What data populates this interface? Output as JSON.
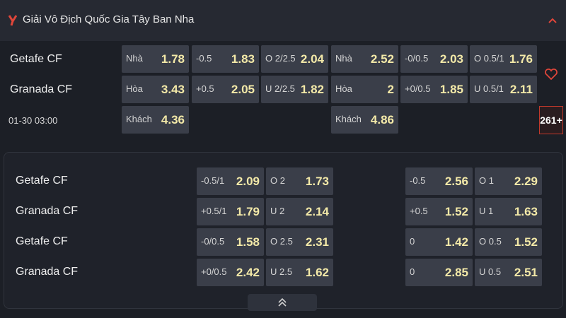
{
  "header": {
    "title": "Giải Vô Địch Quốc Gia Tây Ban Nha"
  },
  "match": {
    "home": "Getafe CF",
    "away": "Granada CF",
    "time": "01-30 03:00",
    "more": "261+"
  },
  "main": {
    "ft_1x2": [
      {
        "label": "Nhà",
        "odd": "1.78"
      },
      {
        "label": "Hòa",
        "odd": "3.43"
      },
      {
        "label": "Khách",
        "odd": "4.36"
      }
    ],
    "ft_handicap": [
      {
        "label": "-0.5",
        "odd": "1.83"
      },
      {
        "label": "+0.5",
        "odd": "2.05"
      }
    ],
    "ft_over_under": [
      {
        "label": "O 2/2.5",
        "odd": "2.04"
      },
      {
        "label": "U 2/2.5",
        "odd": "1.82"
      }
    ],
    "h1_1x2": [
      {
        "label": "Nhà",
        "odd": "2.52"
      },
      {
        "label": "Hòa",
        "odd": "2"
      },
      {
        "label": "Khách",
        "odd": "4.86"
      }
    ],
    "h1_handicap": [
      {
        "label": "-0/0.5",
        "odd": "2.03"
      },
      {
        "label": "+0/0.5",
        "odd": "1.85"
      }
    ],
    "h1_over_under": [
      {
        "label": "O 0.5/1",
        "odd": "1.76"
      },
      {
        "label": "U 0.5/1",
        "odd": "2.11"
      }
    ]
  },
  "extra": {
    "rows": [
      {
        "team": "Getafe CF",
        "cells": [
          {
            "label": "-0.5/1",
            "odd": "2.09"
          },
          {
            "label": "O 2",
            "odd": "1.73"
          },
          {
            "label": "-0.5",
            "odd": "2.56"
          },
          {
            "label": "O 1",
            "odd": "2.29"
          }
        ]
      },
      {
        "team": "Granada CF",
        "cells": [
          {
            "label": "+0.5/1",
            "odd": "1.79"
          },
          {
            "label": "U 2",
            "odd": "2.14"
          },
          {
            "label": "+0.5",
            "odd": "1.52"
          },
          {
            "label": "U 1",
            "odd": "1.63"
          }
        ]
      },
      {
        "team": "Getafe CF",
        "cells": [
          {
            "label": "-0/0.5",
            "odd": "1.58"
          },
          {
            "label": "O 2.5",
            "odd": "2.31"
          },
          {
            "label": "0",
            "odd": "1.42"
          },
          {
            "label": "O 0.5",
            "odd": "1.52"
          }
        ]
      },
      {
        "team": "Granada CF",
        "cells": [
          {
            "label": "+0/0.5",
            "odd": "2.42"
          },
          {
            "label": "U 2.5",
            "odd": "1.62"
          },
          {
            "label": "0",
            "odd": "2.85"
          },
          {
            "label": "U 0.5",
            "odd": "2.51"
          }
        ]
      }
    ]
  }
}
